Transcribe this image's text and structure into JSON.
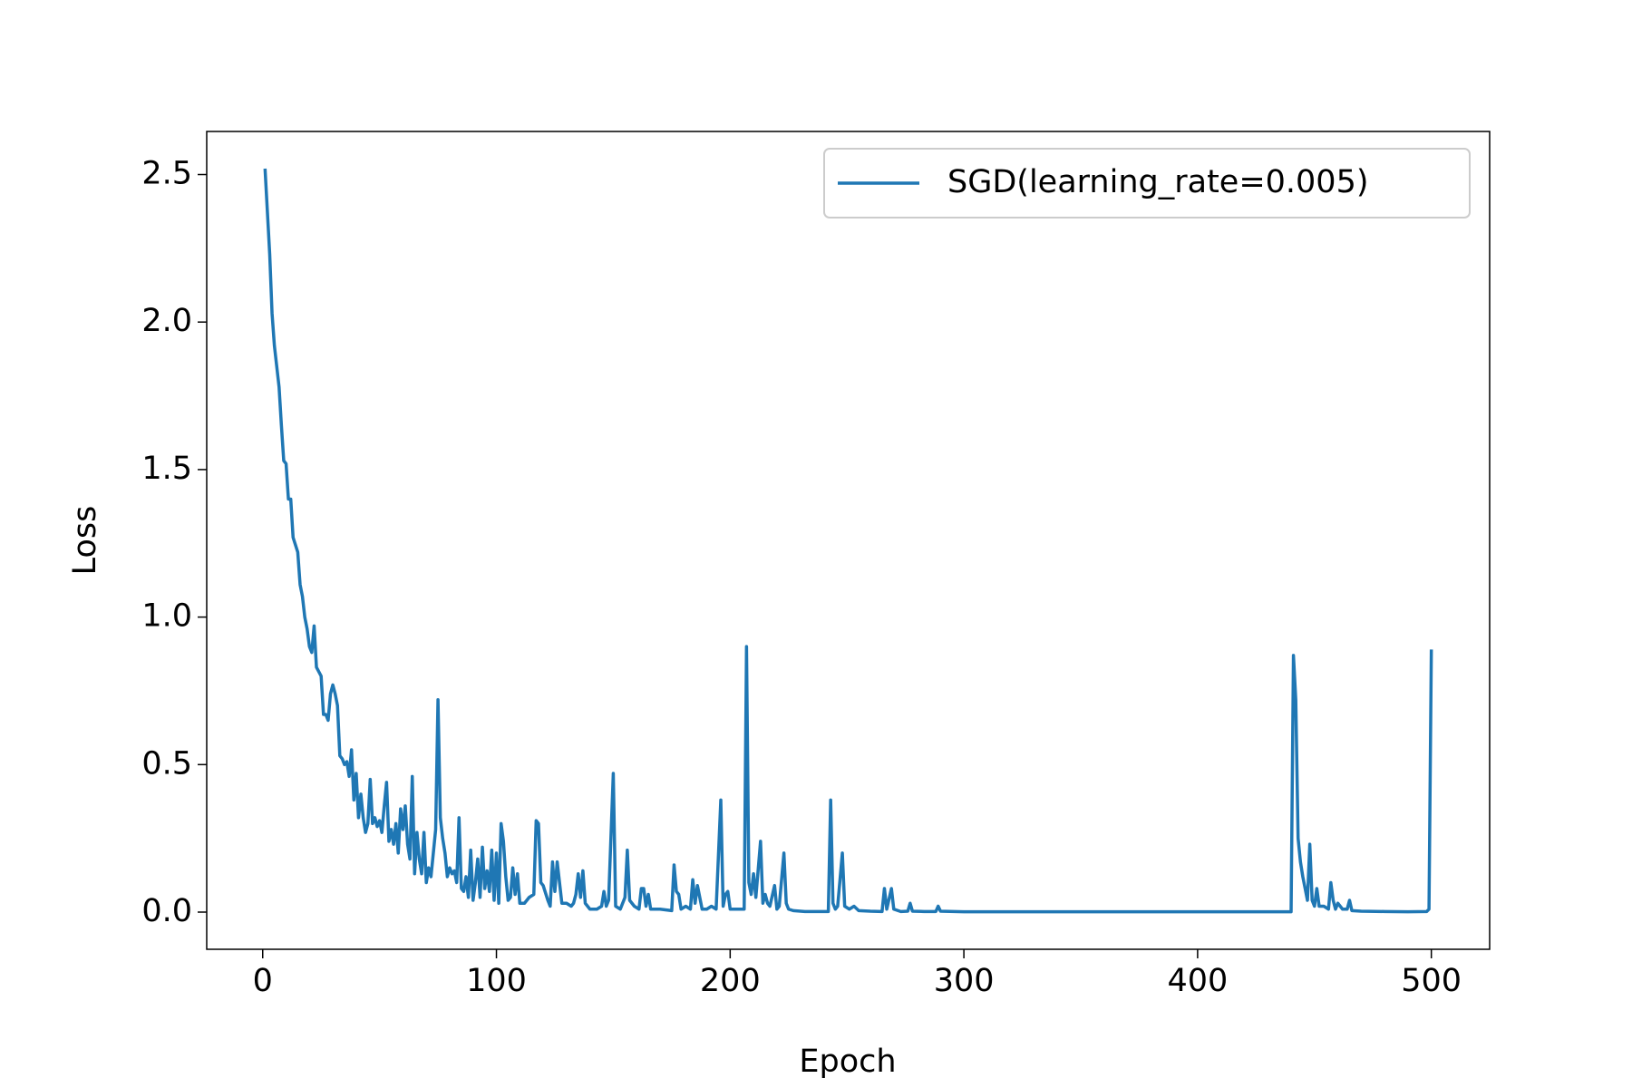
{
  "chart_data": {
    "type": "line",
    "xlabel": "Epoch",
    "ylabel": "Loss",
    "xlim": [
      -23.95,
      524.95
    ],
    "ylim": [
      -0.126,
      2.646
    ],
    "xticks": [
      0,
      100,
      200,
      300,
      400,
      500
    ],
    "yticks": [
      {
        "value": 0,
        "label": "0.0"
      },
      0.5,
      {
        "value": 1,
        "label": "1.0"
      },
      1.5,
      {
        "value": 2,
        "label": "2.0"
      },
      2.5
    ],
    "grid": false,
    "legend": "upper right",
    "x": [
      1,
      3,
      4,
      5,
      7,
      8,
      9,
      10,
      11,
      12,
      13,
      15,
      16,
      17,
      18,
      19,
      20,
      21,
      22,
      23,
      25,
      26,
      27,
      28,
      29,
      30,
      31,
      32,
      33,
      34,
      35,
      36,
      37,
      38,
      39,
      40,
      41,
      42,
      43,
      44,
      45,
      46,
      47,
      48,
      49,
      50,
      51,
      52,
      53,
      54,
      55,
      56,
      57,
      58,
      59,
      60,
      61,
      62,
      63,
      64,
      65,
      66,
      67,
      68,
      69,
      70,
      71,
      72,
      73,
      74,
      75,
      76,
      77,
      78,
      79,
      80,
      81,
      82,
      83,
      84,
      85,
      86,
      87,
      88,
      89,
      90,
      91,
      92,
      93,
      94,
      95,
      96,
      97,
      98,
      99,
      100,
      101,
      102,
      103,
      104,
      105,
      106,
      107,
      108,
      109,
      110,
      112,
      114,
      116,
      117,
      118,
      119,
      120,
      122,
      123,
      124,
      125,
      126,
      128,
      130,
      132,
      133,
      134,
      135,
      136,
      137,
      138,
      140,
      143,
      145,
      146,
      147,
      148,
      150,
      151,
      153,
      155,
      156,
      157,
      159,
      161,
      162,
      163,
      164,
      165,
      166,
      170,
      175,
      176,
      177,
      178,
      179,
      181,
      183,
      184,
      185,
      186,
      187,
      188,
      190,
      192,
      194,
      196,
      197,
      198,
      199,
      200,
      203,
      206,
      207,
      208,
      209,
      210,
      211,
      213,
      214,
      215,
      216,
      217,
      219,
      220,
      221,
      223,
      224,
      225,
      227,
      232,
      238,
      242,
      243,
      244,
      245,
      246,
      248,
      249,
      251,
      253,
      255,
      260,
      265,
      266,
      267,
      269,
      270,
      273,
      276,
      277,
      278,
      283,
      288,
      289,
      290,
      300,
      350,
      400,
      440,
      441,
      442,
      443,
      444,
      445,
      446,
      447,
      448,
      449,
      450,
      451,
      452,
      454,
      456,
      457,
      458,
      459,
      460,
      462,
      464,
      465,
      466,
      470,
      480,
      490,
      498,
      499,
      500
    ],
    "series": [
      {
        "name": "SGD(learning_rate=0.005)",
        "color": "#1f77b4",
        "values": [
          2.52,
          2.23,
          2.03,
          1.92,
          1.78,
          1.65,
          1.53,
          1.52,
          1.4,
          1.4,
          1.27,
          1.22,
          1.11,
          1.07,
          1.0,
          0.96,
          0.9,
          0.88,
          0.97,
          0.83,
          0.8,
          0.67,
          0.67,
          0.65,
          0.74,
          0.77,
          0.74,
          0.7,
          0.53,
          0.52,
          0.5,
          0.51,
          0.46,
          0.55,
          0.38,
          0.47,
          0.32,
          0.4,
          0.32,
          0.27,
          0.3,
          0.45,
          0.3,
          0.32,
          0.29,
          0.31,
          0.27,
          0.36,
          0.44,
          0.24,
          0.28,
          0.23,
          0.3,
          0.2,
          0.35,
          0.28,
          0.36,
          0.23,
          0.18,
          0.46,
          0.13,
          0.27,
          0.18,
          0.13,
          0.27,
          0.1,
          0.15,
          0.12,
          0.2,
          0.28,
          0.72,
          0.32,
          0.25,
          0.2,
          0.12,
          0.15,
          0.13,
          0.14,
          0.1,
          0.32,
          0.08,
          0.07,
          0.12,
          0.05,
          0.21,
          0.04,
          0.1,
          0.18,
          0.05,
          0.22,
          0.08,
          0.14,
          0.07,
          0.21,
          0.04,
          0.2,
          0.03,
          0.3,
          0.24,
          0.12,
          0.04,
          0.05,
          0.15,
          0.06,
          0.13,
          0.03,
          0.03,
          0.05,
          0.06,
          0.31,
          0.3,
          0.1,
          0.09,
          0.04,
          0.02,
          0.17,
          0.07,
          0.17,
          0.03,
          0.03,
          0.02,
          0.03,
          0.06,
          0.13,
          0.05,
          0.14,
          0.03,
          0.01,
          0.01,
          0.02,
          0.07,
          0.02,
          0.04,
          0.47,
          0.02,
          0.01,
          0.05,
          0.21,
          0.04,
          0.02,
          0.01,
          0.08,
          0.08,
          0.02,
          0.06,
          0.01,
          0.01,
          0.005,
          0.16,
          0.07,
          0.06,
          0.01,
          0.02,
          0.01,
          0.11,
          0.03,
          0.09,
          0.05,
          0.01,
          0.01,
          0.02,
          0.01,
          0.38,
          0.02,
          0.06,
          0.07,
          0.01,
          0.01,
          0.01,
          0.9,
          0.1,
          0.06,
          0.13,
          0.05,
          0.24,
          0.03,
          0.06,
          0.03,
          0.02,
          0.09,
          0.01,
          0.02,
          0.2,
          0.03,
          0.01,
          0.005,
          0.002,
          0.002,
          0.002,
          0.38,
          0.03,
          0.01,
          0.02,
          0.2,
          0.02,
          0.01,
          0.02,
          0.005,
          0.003,
          0.002,
          0.08,
          0.01,
          0.08,
          0.01,
          0.002,
          0.003,
          0.03,
          0.003,
          0.002,
          0.002,
          0.02,
          0.003,
          0.001,
          0.001,
          0.001,
          0.001,
          0.87,
          0.72,
          0.25,
          0.17,
          0.12,
          0.08,
          0.04,
          0.23,
          0.04,
          0.02,
          0.08,
          0.02,
          0.02,
          0.01,
          0.1,
          0.04,
          0.01,
          0.03,
          0.01,
          0.01,
          0.04,
          0.005,
          0.003,
          0.002,
          0.001,
          0.002,
          0.01,
          0.89
        ]
      }
    ]
  }
}
